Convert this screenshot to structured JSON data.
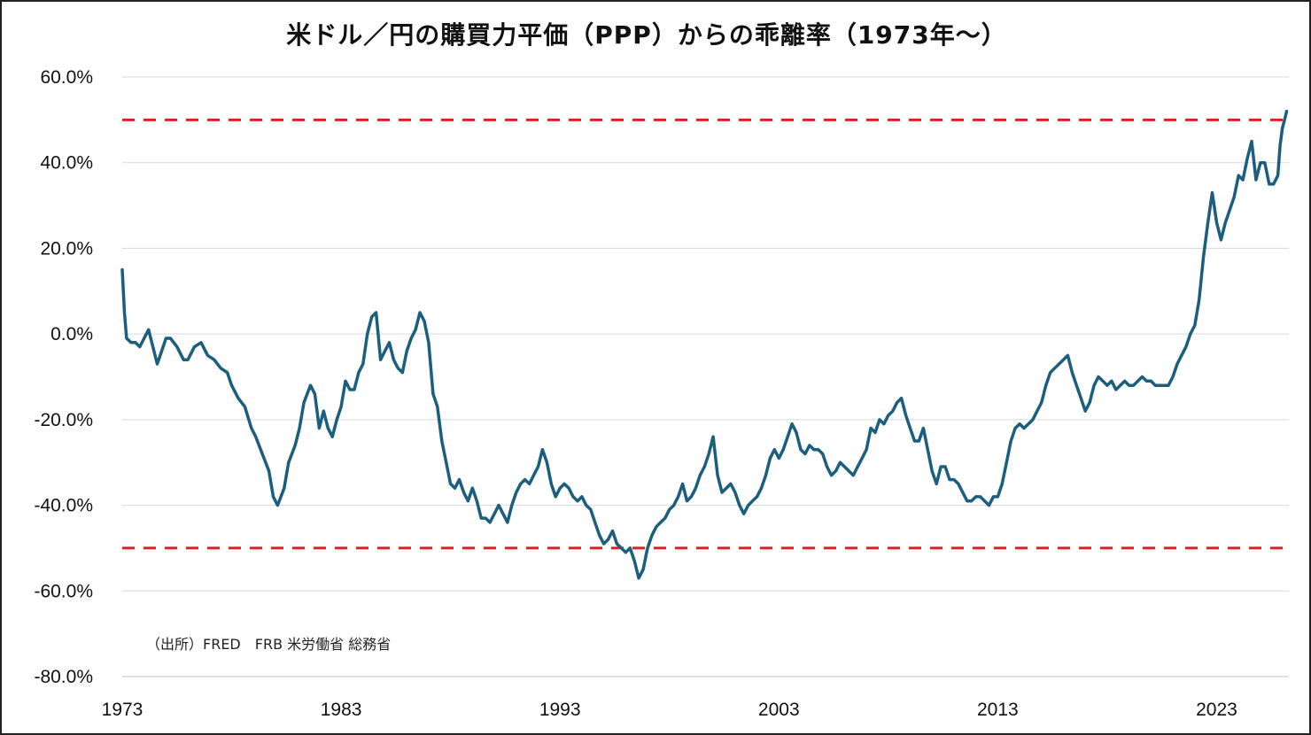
{
  "chart_data": {
    "type": "line",
    "title": "米ドル／円の購買力平価（PPP）からの乖離率（1973年〜）",
    "source_note": "（出所）FRED　FRB 米労働省 総務省",
    "xlabel": "",
    "ylabel": "",
    "xlim": [
      1973,
      2026.3
    ],
    "ylim": [
      -80,
      60
    ],
    "x_ticks": [
      "1973",
      "1983",
      "1993",
      "2003",
      "2013",
      "2023"
    ],
    "y_ticks": [
      "60.0%",
      "40.0%",
      "20.0%",
      "0.0%",
      "-20.0%",
      "-40.0%",
      "-60.0%",
      "-80.0%"
    ],
    "grid": "horizontal",
    "reference_lines": [
      50,
      -50
    ],
    "colors": {
      "series": "#1b5e7e",
      "reference": "#e02020",
      "grid": "#d9d9d9"
    },
    "series": [
      {
        "values": [
          [
            1973.0,
            15
          ],
          [
            1973.1,
            5
          ],
          [
            1973.2,
            -1
          ],
          [
            1973.4,
            -2
          ],
          [
            1973.6,
            -2
          ],
          [
            1973.8,
            -3
          ],
          [
            1974.0,
            -1
          ],
          [
            1974.2,
            1
          ],
          [
            1974.4,
            -3
          ],
          [
            1974.6,
            -7
          ],
          [
            1974.8,
            -4
          ],
          [
            1975.0,
            -1
          ],
          [
            1975.2,
            -1
          ],
          [
            1975.5,
            -3
          ],
          [
            1975.8,
            -6
          ],
          [
            1976.0,
            -6
          ],
          [
            1976.3,
            -3
          ],
          [
            1976.6,
            -2
          ],
          [
            1976.9,
            -5
          ],
          [
            1977.2,
            -6
          ],
          [
            1977.5,
            -8
          ],
          [
            1977.8,
            -9
          ],
          [
            1978.0,
            -12
          ],
          [
            1978.3,
            -15
          ],
          [
            1978.6,
            -17
          ],
          [
            1978.9,
            -22
          ],
          [
            1979.1,
            -24
          ],
          [
            1979.4,
            -28
          ],
          [
            1979.7,
            -32
          ],
          [
            1979.9,
            -38
          ],
          [
            1980.1,
            -40
          ],
          [
            1980.4,
            -36
          ],
          [
            1980.6,
            -30
          ],
          [
            1980.9,
            -26
          ],
          [
            1981.1,
            -22
          ],
          [
            1981.3,
            -16
          ],
          [
            1981.6,
            -12
          ],
          [
            1981.8,
            -14
          ],
          [
            1982.0,
            -22
          ],
          [
            1982.2,
            -18
          ],
          [
            1982.4,
            -22
          ],
          [
            1982.6,
            -24
          ],
          [
            1982.8,
            -20
          ],
          [
            1983.0,
            -17
          ],
          [
            1983.2,
            -11
          ],
          [
            1983.4,
            -13
          ],
          [
            1983.6,
            -13
          ],
          [
            1983.8,
            -9
          ],
          [
            1984.0,
            -7
          ],
          [
            1984.2,
            0
          ],
          [
            1984.4,
            4
          ],
          [
            1984.6,
            5
          ],
          [
            1984.8,
            -6
          ],
          [
            1985.0,
            -4
          ],
          [
            1985.2,
            -2
          ],
          [
            1985.4,
            -6
          ],
          [
            1985.6,
            -8
          ],
          [
            1985.8,
            -9
          ],
          [
            1986.0,
            -4
          ],
          [
            1986.2,
            -1
          ],
          [
            1986.4,
            1
          ],
          [
            1986.6,
            5
          ],
          [
            1986.8,
            3
          ],
          [
            1987.0,
            -2
          ],
          [
            1987.2,
            -14
          ],
          [
            1987.4,
            -17
          ],
          [
            1987.6,
            -25
          ],
          [
            1987.8,
            -30
          ],
          [
            1988.0,
            -35
          ],
          [
            1988.2,
            -36
          ],
          [
            1988.4,
            -34
          ],
          [
            1988.6,
            -37
          ],
          [
            1988.8,
            -39
          ],
          [
            1989.0,
            -36
          ],
          [
            1989.2,
            -39
          ],
          [
            1989.4,
            -43
          ],
          [
            1989.6,
            -43
          ],
          [
            1989.8,
            -44
          ],
          [
            1990.0,
            -42
          ],
          [
            1990.2,
            -40
          ],
          [
            1990.4,
            -42
          ],
          [
            1990.6,
            -44
          ],
          [
            1990.8,
            -40
          ],
          [
            1991.0,
            -37
          ],
          [
            1991.2,
            -35
          ],
          [
            1991.4,
            -34
          ],
          [
            1991.6,
            -35
          ],
          [
            1991.8,
            -33
          ],
          [
            1992.0,
            -31
          ],
          [
            1992.2,
            -27
          ],
          [
            1992.4,
            -30
          ],
          [
            1992.6,
            -35
          ],
          [
            1992.8,
            -38
          ],
          [
            1993.0,
            -36
          ],
          [
            1993.2,
            -35
          ],
          [
            1993.4,
            -36
          ],
          [
            1993.6,
            -38
          ],
          [
            1993.8,
            -39
          ],
          [
            1994.0,
            -38
          ],
          [
            1994.2,
            -40
          ],
          [
            1994.4,
            -41
          ],
          [
            1994.6,
            -44
          ],
          [
            1994.8,
            -47
          ],
          [
            1995.0,
            -49
          ],
          [
            1995.2,
            -48
          ],
          [
            1995.4,
            -46
          ],
          [
            1995.6,
            -49
          ],
          [
            1995.8,
            -50
          ],
          [
            1996.0,
            -51
          ],
          [
            1996.2,
            -50
          ],
          [
            1996.4,
            -53
          ],
          [
            1996.6,
            -57
          ],
          [
            1996.8,
            -55
          ],
          [
            1997.0,
            -50
          ],
          [
            1997.2,
            -47
          ],
          [
            1997.4,
            -45
          ],
          [
            1997.6,
            -44
          ],
          [
            1997.8,
            -43
          ],
          [
            1998.0,
            -41
          ],
          [
            1998.2,
            -40
          ],
          [
            1998.4,
            -38
          ],
          [
            1998.6,
            -35
          ],
          [
            1998.8,
            -39
          ],
          [
            1999.0,
            -38
          ],
          [
            1999.2,
            -36
          ],
          [
            1999.4,
            -33
          ],
          [
            1999.6,
            -31
          ],
          [
            1999.8,
            -28
          ],
          [
            2000.0,
            -24
          ],
          [
            2000.2,
            -33
          ],
          [
            2000.4,
            -37
          ],
          [
            2000.6,
            -36
          ],
          [
            2000.8,
            -35
          ],
          [
            2001.0,
            -37
          ],
          [
            2001.2,
            -40
          ],
          [
            2001.4,
            -42
          ],
          [
            2001.6,
            -40
          ],
          [
            2001.8,
            -39
          ],
          [
            2002.0,
            -38
          ],
          [
            2002.2,
            -36
          ],
          [
            2002.4,
            -33
          ],
          [
            2002.6,
            -29
          ],
          [
            2002.8,
            -27
          ],
          [
            2003.0,
            -29
          ],
          [
            2003.2,
            -27
          ],
          [
            2003.4,
            -24
          ],
          [
            2003.6,
            -21
          ],
          [
            2003.8,
            -23
          ],
          [
            2004.0,
            -27
          ],
          [
            2004.2,
            -28
          ],
          [
            2004.4,
            -26
          ],
          [
            2004.6,
            -27
          ],
          [
            2004.8,
            -27
          ],
          [
            2005.0,
            -28
          ],
          [
            2005.2,
            -31
          ],
          [
            2005.4,
            -33
          ],
          [
            2005.6,
            -32
          ],
          [
            2005.8,
            -30
          ],
          [
            2006.0,
            -31
          ],
          [
            2006.2,
            -32
          ],
          [
            2006.4,
            -33
          ],
          [
            2006.6,
            -31
          ],
          [
            2006.8,
            -29
          ],
          [
            2007.0,
            -27
          ],
          [
            2007.2,
            -22
          ],
          [
            2007.4,
            -23
          ],
          [
            2007.6,
            -20
          ],
          [
            2007.8,
            -21
          ],
          [
            2008.0,
            -19
          ],
          [
            2008.2,
            -18
          ],
          [
            2008.4,
            -16
          ],
          [
            2008.6,
            -15
          ],
          [
            2008.8,
            -19
          ],
          [
            2009.0,
            -22
          ],
          [
            2009.2,
            -25
          ],
          [
            2009.4,
            -25
          ],
          [
            2009.6,
            -22
          ],
          [
            2009.8,
            -27
          ],
          [
            2010.0,
            -32
          ],
          [
            2010.2,
            -35
          ],
          [
            2010.4,
            -31
          ],
          [
            2010.6,
            -31
          ],
          [
            2010.8,
            -34
          ],
          [
            2011.0,
            -34
          ],
          [
            2011.2,
            -35
          ],
          [
            2011.4,
            -37
          ],
          [
            2011.6,
            -39
          ],
          [
            2011.8,
            -39
          ],
          [
            2012.0,
            -38
          ],
          [
            2012.2,
            -38
          ],
          [
            2012.4,
            -39
          ],
          [
            2012.6,
            -40
          ],
          [
            2012.8,
            -38
          ],
          [
            2013.0,
            -38
          ],
          [
            2013.2,
            -35
          ],
          [
            2013.4,
            -30
          ],
          [
            2013.6,
            -25
          ],
          [
            2013.8,
            -22
          ],
          [
            2014.0,
            -21
          ],
          [
            2014.2,
            -22
          ],
          [
            2014.4,
            -21
          ],
          [
            2014.6,
            -20
          ],
          [
            2014.8,
            -18
          ],
          [
            2015.0,
            -16
          ],
          [
            2015.2,
            -12
          ],
          [
            2015.4,
            -9
          ],
          [
            2015.6,
            -8
          ],
          [
            2015.8,
            -7
          ],
          [
            2016.0,
            -6
          ],
          [
            2016.2,
            -5
          ],
          [
            2016.4,
            -9
          ],
          [
            2016.6,
            -12
          ],
          [
            2016.8,
            -15
          ],
          [
            2017.0,
            -18
          ],
          [
            2017.2,
            -16
          ],
          [
            2017.4,
            -12
          ],
          [
            2017.6,
            -10
          ],
          [
            2017.8,
            -11
          ],
          [
            2018.0,
            -12
          ],
          [
            2018.2,
            -11
          ],
          [
            2018.4,
            -13
          ],
          [
            2018.6,
            -12
          ],
          [
            2018.8,
            -11
          ],
          [
            2019.0,
            -12
          ],
          [
            2019.2,
            -12
          ],
          [
            2019.4,
            -11
          ],
          [
            2019.6,
            -10
          ],
          [
            2019.8,
            -11
          ],
          [
            2020.0,
            -11
          ],
          [
            2020.2,
            -12
          ],
          [
            2020.4,
            -12
          ],
          [
            2020.6,
            -12
          ],
          [
            2020.8,
            -12
          ],
          [
            2021.0,
            -10
          ],
          [
            2021.2,
            -7
          ],
          [
            2021.4,
            -5
          ],
          [
            2021.6,
            -3
          ],
          [
            2021.8,
            0
          ],
          [
            2022.0,
            2
          ],
          [
            2022.2,
            8
          ],
          [
            2022.4,
            18
          ],
          [
            2022.6,
            26
          ],
          [
            2022.8,
            33
          ],
          [
            2023.0,
            26
          ],
          [
            2023.2,
            22
          ],
          [
            2023.4,
            26
          ],
          [
            2023.6,
            29
          ],
          [
            2023.8,
            32
          ],
          [
            2024.0,
            37
          ],
          [
            2024.2,
            36
          ],
          [
            2024.4,
            41
          ],
          [
            2024.6,
            45
          ],
          [
            2024.8,
            36
          ],
          [
            2025.0,
            40
          ],
          [
            2025.2,
            40
          ],
          [
            2025.4,
            35
          ],
          [
            2025.6,
            35
          ],
          [
            2025.8,
            37
          ],
          [
            2025.9,
            44
          ],
          [
            2026.0,
            48
          ],
          [
            2026.1,
            50
          ],
          [
            2026.2,
            52
          ]
        ]
      }
    ]
  }
}
